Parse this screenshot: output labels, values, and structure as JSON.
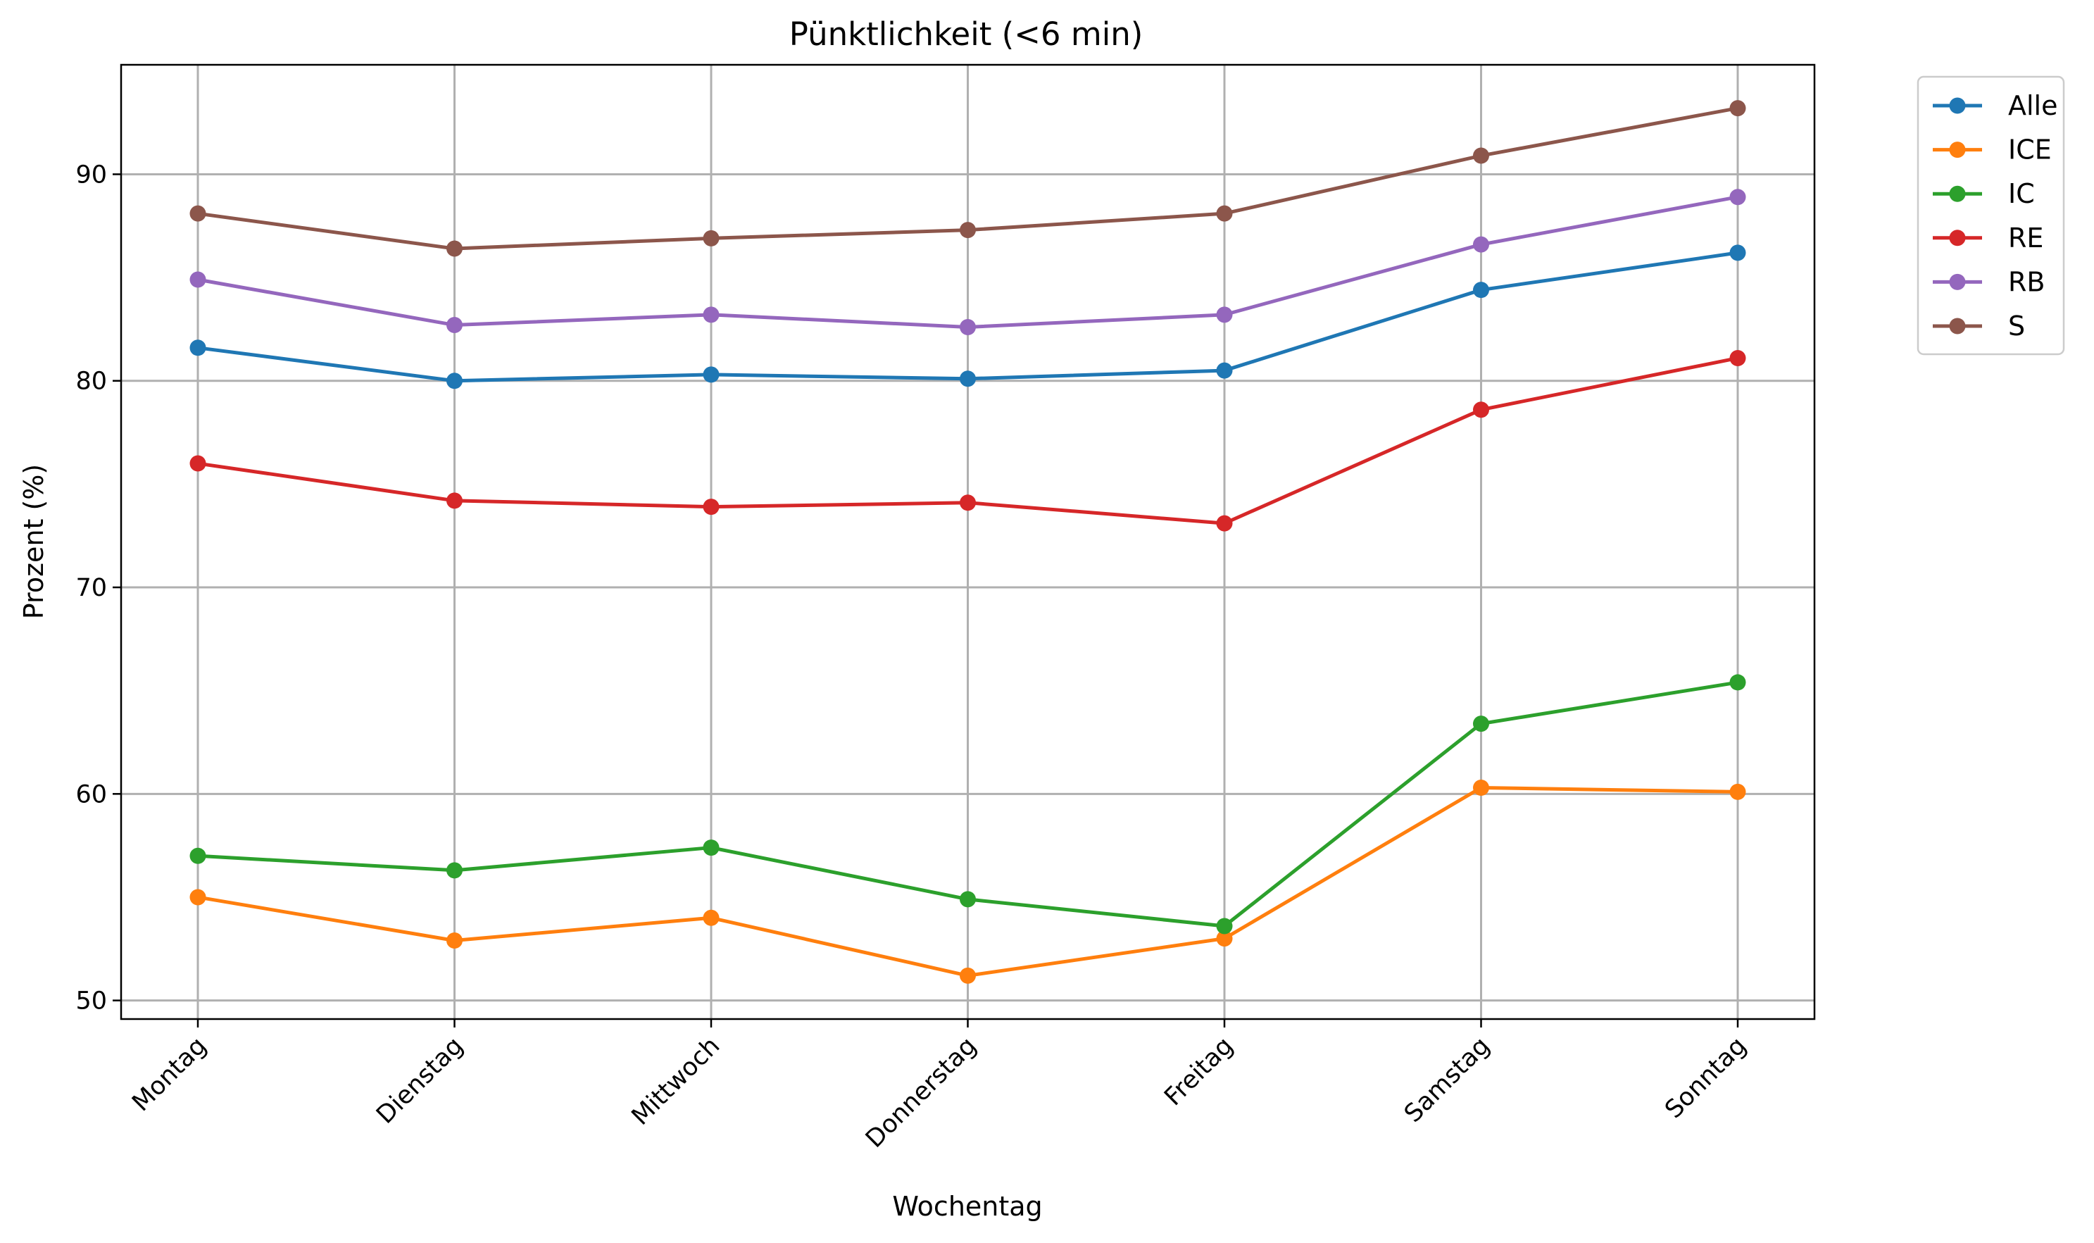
{
  "chart_data": {
    "type": "line",
    "title": "Pünktlichkeit (<6 min)",
    "xlabel": "Wochentag",
    "ylabel": "Prozent (%)",
    "categories": [
      "Montag",
      "Dienstag",
      "Mittwoch",
      "Donnerstag",
      "Freitag",
      "Samstag",
      "Sonntag"
    ],
    "ylim": [
      49.1,
      95.3
    ],
    "yticks": [
      50,
      60,
      70,
      80,
      90
    ],
    "grid": true,
    "legend_position": "outside top-right",
    "markers": "circle",
    "series": [
      {
        "name": "Alle",
        "color": "#1f77b4",
        "values": [
          81.6,
          80.0,
          80.3,
          80.1,
          80.5,
          84.4,
          86.2
        ]
      },
      {
        "name": "ICE",
        "color": "#ff7f0e",
        "values": [
          55.0,
          52.9,
          54.0,
          51.2,
          53.0,
          60.3,
          60.1
        ]
      },
      {
        "name": "IC",
        "color": "#2ca02c",
        "values": [
          57.0,
          56.3,
          57.4,
          54.9,
          53.6,
          63.4,
          65.4
        ]
      },
      {
        "name": "RE",
        "color": "#d62728",
        "values": [
          76.0,
          74.2,
          73.9,
          74.1,
          73.1,
          78.6,
          81.1
        ]
      },
      {
        "name": "RB",
        "color": "#9467bd",
        "values": [
          84.9,
          82.7,
          83.2,
          82.6,
          83.2,
          86.6,
          88.9
        ]
      },
      {
        "name": "S",
        "color": "#8c564b",
        "values": [
          88.1,
          86.4,
          86.9,
          87.3,
          88.1,
          90.9,
          93.2
        ]
      }
    ]
  }
}
